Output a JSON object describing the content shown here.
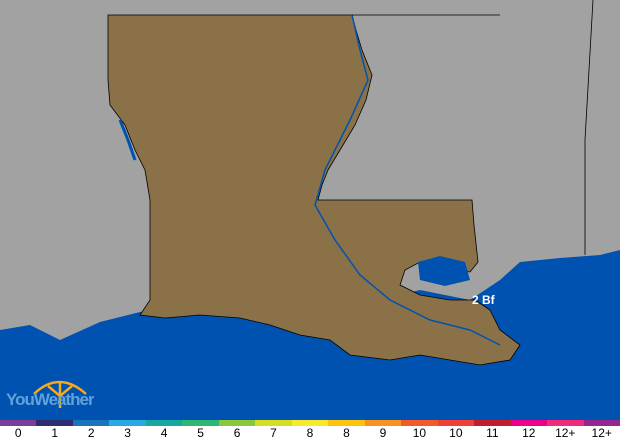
{
  "map": {
    "colors": {
      "background": "#a2a2a2",
      "land": "#8a7148",
      "water": "#0052b0",
      "border": "#000000"
    },
    "point_label": "2 Bf"
  },
  "logo": {
    "text": "YouWeather"
  },
  "legend": {
    "unit": "Beaufort",
    "items": [
      {
        "label": "0",
        "color": "#7a3d9b"
      },
      {
        "label": "1",
        "color": "#2e2c6c"
      },
      {
        "label": "2",
        "color": "#1b74bb"
      },
      {
        "label": "3",
        "color": "#29a9e1"
      },
      {
        "label": "4",
        "color": "#16a79e"
      },
      {
        "label": "5",
        "color": "#2fb574"
      },
      {
        "label": "6",
        "color": "#8cc63f"
      },
      {
        "label": "7",
        "color": "#d6de23"
      },
      {
        "label": "8",
        "color": "#f6ea2d"
      },
      {
        "label": "8",
        "color": "#fcc30f"
      },
      {
        "label": "9",
        "color": "#f7931e"
      },
      {
        "label": "10",
        "color": "#f15a2a"
      },
      {
        "label": "10",
        "color": "#ee4036"
      },
      {
        "label": "11",
        "color": "#be1e2d"
      },
      {
        "label": "12",
        "color": "#ec008b"
      },
      {
        "label": "12+",
        "color": "#ee2d7a"
      },
      {
        "label": "12+",
        "color": "#92278f"
      }
    ]
  }
}
